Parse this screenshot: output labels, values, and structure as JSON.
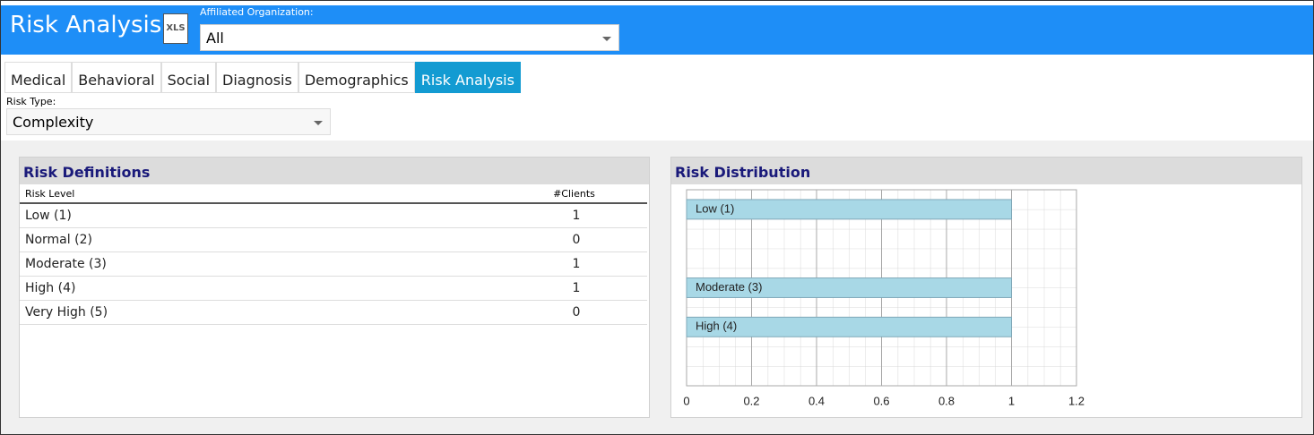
{
  "header": {
    "title": "Risk Analysis",
    "icon_label": "XLS",
    "org_label": "Affiliated Organization:",
    "org_value": "All"
  },
  "tabs": [
    "Medical",
    "Behavioral",
    "Social",
    "Diagnosis",
    "Demographics",
    "Risk Analysis"
  ],
  "active_tab": 5,
  "risk_type": {
    "label": "Risk Type:",
    "value": "Complexity"
  },
  "definitions": {
    "title": "Risk Definitions",
    "columns": [
      "Risk Level",
      "#Clients"
    ],
    "rows": [
      [
        "Low (1)",
        1
      ],
      [
        "Normal (2)",
        0
      ],
      [
        "Moderate (3)",
        1
      ],
      [
        "High (4)",
        1
      ],
      [
        "Very High (5)",
        0
      ]
    ]
  },
  "distribution_title": "Risk Distribution",
  "chart_data": {
    "type": "hbar",
    "categories": [
      "Low (1)",
      null,
      "Moderate (3)",
      "High (4)",
      null
    ],
    "values": [
      1,
      0,
      1,
      1,
      0
    ],
    "color": "#a8d8e6",
    "xlim": [
      0,
      1.2
    ],
    "xticks": [
      0,
      0.2,
      0.4,
      0.6,
      0.8,
      1,
      1.2
    ],
    "grid": true
  }
}
